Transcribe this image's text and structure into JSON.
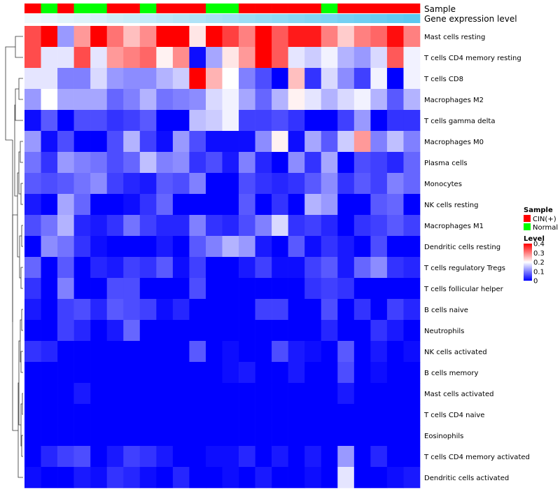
{
  "chart_data": {
    "type": "heatmap",
    "annotation_labels": [
      "Sample",
      "Gene expression level"
    ],
    "columns": 24,
    "sample_groups": [
      "CIN(+)",
      "Normal",
      "CIN(+)",
      "Normal",
      "Normal",
      "CIN(+)",
      "CIN(+)",
      "Normal",
      "CIN(+)",
      "CIN(+)",
      "CIN(+)",
      "Normal",
      "Normal",
      "CIN(+)",
      "CIN(+)",
      "CIN(+)",
      "CIN(+)",
      "CIN(+)",
      "Normal",
      "CIN(+)",
      "CIN(+)",
      "CIN(+)",
      "CIN(+)",
      "CIN(+)"
    ],
    "gene_expression_level": [
      0.0,
      0.04,
      0.09,
      0.13,
      0.17,
      0.22,
      0.26,
      0.3,
      0.35,
      0.39,
      0.43,
      0.48,
      0.52,
      0.57,
      0.61,
      0.65,
      0.7,
      0.74,
      0.78,
      0.83,
      0.87,
      0.91,
      0.96,
      1.0
    ],
    "rows": [
      "Mast cells resting",
      "T cells CD4 memory resting",
      "T cells CD8",
      "Macrophages M2",
      "T cells gamma delta",
      "Macrophages M0",
      "Plasma cells",
      "Monocytes",
      "NK cells resting",
      "Macrophages M1",
      "Dendritic cells resting",
      "T cells regulatory  Tregs",
      "T cells follicular helper",
      "B cells naive",
      "Neutrophils",
      "NK cells activated",
      "B cells memory",
      "Mast cells activated",
      "T cells CD4 naive",
      "Eosinophils",
      "T cells CD4 memory activated",
      "Dendritic cells activated"
    ],
    "values": [
      [
        0.34,
        0.4,
        0.12,
        0.28,
        0.4,
        0.31,
        0.25,
        0.29,
        0.4,
        0.4,
        0.22,
        0.4,
        0.35,
        0.3,
        0.4,
        0.33,
        0.38,
        0.38,
        0.3,
        0.24,
        0.3,
        0.32,
        0.39,
        0.3
      ],
      [
        0.34,
        0.18,
        0.18,
        0.34,
        0.18,
        0.28,
        0.3,
        0.32,
        0.21,
        0.29,
        0.01,
        0.13,
        0.22,
        0.28,
        0.4,
        0.33,
        0.18,
        0.16,
        0.19,
        0.14,
        0.12,
        0.17,
        0.33,
        0.19
      ],
      [
        0.18,
        0.18,
        0.1,
        0.1,
        0.17,
        0.12,
        0.11,
        0.11,
        0.14,
        0.16,
        0.4,
        0.26,
        0.2,
        0.1,
        0.06,
        0.0,
        0.25,
        0.04,
        0.17,
        0.11,
        0.05,
        0.19,
        0.0,
        0.19
      ],
      [
        0.12,
        0.2,
        0.13,
        0.13,
        0.13,
        0.08,
        0.1,
        0.14,
        0.09,
        0.1,
        0.11,
        0.17,
        0.19,
        0.13,
        0.08,
        0.14,
        0.21,
        0.18,
        0.14,
        0.17,
        0.19,
        0.14,
        0.07,
        0.14
      ],
      [
        0.01,
        0.07,
        0.0,
        0.06,
        0.06,
        0.04,
        0.05,
        0.07,
        0.0,
        0.0,
        0.15,
        0.16,
        0.19,
        0.05,
        0.05,
        0.06,
        0.04,
        0.0,
        0.0,
        0.05,
        0.12,
        0.0,
        0.04,
        0.04
      ],
      [
        0.12,
        0.01,
        0.06,
        0.0,
        0.0,
        0.06,
        0.14,
        0.05,
        0.01,
        0.12,
        0.06,
        0.01,
        0.01,
        0.01,
        0.11,
        0.21,
        0.01,
        0.13,
        0.07,
        0.16,
        0.28,
        0.1,
        0.15,
        0.1
      ],
      [
        0.09,
        0.04,
        0.12,
        0.1,
        0.09,
        0.06,
        0.08,
        0.15,
        0.1,
        0.11,
        0.04,
        0.06,
        0.02,
        0.1,
        0.03,
        0.0,
        0.11,
        0.04,
        0.13,
        0.0,
        0.06,
        0.05,
        0.03,
        0.08
      ],
      [
        0.07,
        0.06,
        0.07,
        0.09,
        0.11,
        0.05,
        0.03,
        0.02,
        0.07,
        0.06,
        0.1,
        0.0,
        0.0,
        0.06,
        0.04,
        0.03,
        0.04,
        0.07,
        0.11,
        0.04,
        0.07,
        0.05,
        0.1,
        0.08
      ],
      [
        0.02,
        0.0,
        0.13,
        0.08,
        0.0,
        0.0,
        0.01,
        0.04,
        0.08,
        0.0,
        0.0,
        0.0,
        0.0,
        0.07,
        0.0,
        0.04,
        0.0,
        0.14,
        0.12,
        0.0,
        0.0,
        0.07,
        0.08,
        0.0
      ],
      [
        0.06,
        0.09,
        0.14,
        0.03,
        0.02,
        0.04,
        0.09,
        0.05,
        0.03,
        0.03,
        0.1,
        0.04,
        0.03,
        0.06,
        0.1,
        0.17,
        0.04,
        0.05,
        0.03,
        0.0,
        0.04,
        0.05,
        0.07,
        0.05
      ],
      [
        0.0,
        0.11,
        0.09,
        0.04,
        0.01,
        0.0,
        0.0,
        0.0,
        0.02,
        0.0,
        0.07,
        0.1,
        0.14,
        0.12,
        0.02,
        0.0,
        0.07,
        0.01,
        0.04,
        0.02,
        0.0,
        0.06,
        0.0,
        0.0
      ],
      [
        0.08,
        0.0,
        0.07,
        0.0,
        0.03,
        0.02,
        0.05,
        0.04,
        0.07,
        0.01,
        0.05,
        0.0,
        0.0,
        0.02,
        0.05,
        0.01,
        0.01,
        0.05,
        0.07,
        0.02,
        0.08,
        0.11,
        0.04,
        0.03
      ],
      [
        0.04,
        0.0,
        0.1,
        0.0,
        0.0,
        0.06,
        0.06,
        0.0,
        0.0,
        0.0,
        0.06,
        0.0,
        0.0,
        0.0,
        0.0,
        0.0,
        0.0,
        0.04,
        0.05,
        0.04,
        0.0,
        0.0,
        0.0,
        0.0
      ],
      [
        0.02,
        0.0,
        0.05,
        0.06,
        0.03,
        0.07,
        0.06,
        0.05,
        0.01,
        0.03,
        0.0,
        0.0,
        0.0,
        0.0,
        0.05,
        0.05,
        0.0,
        0.0,
        0.06,
        0.0,
        0.04,
        0.0,
        0.05,
        0.03
      ],
      [
        0.0,
        0.0,
        0.05,
        0.03,
        0.0,
        0.02,
        0.08,
        0.0,
        0.0,
        0.0,
        0.0,
        0.0,
        0.0,
        0.0,
        0.0,
        0.0,
        0.0,
        0.0,
        0.03,
        0.0,
        0.0,
        0.04,
        0.02,
        0.0
      ],
      [
        0.04,
        0.03,
        0.0,
        0.0,
        0.0,
        0.0,
        0.0,
        0.0,
        0.0,
        0.0,
        0.07,
        0.0,
        0.01,
        0.0,
        0.0,
        0.06,
        0.02,
        0.01,
        0.0,
        0.07,
        0.0,
        0.02,
        0.0,
        0.01
      ],
      [
        0.0,
        0.0,
        0.0,
        0.0,
        0.0,
        0.0,
        0.0,
        0.0,
        0.0,
        0.0,
        0.0,
        0.0,
        0.01,
        0.02,
        0.0,
        0.0,
        0.02,
        0.0,
        0.0,
        0.06,
        0.0,
        0.01,
        0.0,
        0.0
      ],
      [
        0.0,
        0.0,
        0.0,
        0.02,
        0.0,
        0.0,
        0.0,
        0.0,
        0.0,
        0.0,
        0.0,
        0.0,
        0.0,
        0.0,
        0.0,
        0.0,
        0.0,
        0.0,
        0.0,
        0.02,
        0.0,
        0.0,
        0.0,
        0.0
      ],
      [
        0.0,
        0.0,
        0.0,
        0.0,
        0.0,
        0.0,
        0.0,
        0.0,
        0.0,
        0.0,
        0.0,
        0.0,
        0.0,
        0.0,
        0.0,
        0.0,
        0.0,
        0.0,
        0.0,
        0.0,
        0.0,
        0.0,
        0.0,
        0.0
      ],
      [
        0.0,
        0.0,
        0.0,
        0.0,
        0.0,
        0.0,
        0.0,
        0.0,
        0.0,
        0.0,
        0.0,
        0.0,
        0.0,
        0.0,
        0.0,
        0.0,
        0.0,
        0.0,
        0.0,
        0.0,
        0.0,
        0.0,
        0.0,
        0.0
      ],
      [
        0.0,
        0.03,
        0.05,
        0.06,
        0.0,
        0.02,
        0.05,
        0.04,
        0.02,
        0.0,
        0.0,
        0.01,
        0.01,
        0.03,
        0.0,
        0.02,
        0.0,
        0.02,
        0.0,
        0.12,
        0.0,
        0.03,
        0.0,
        0.0
      ],
      [
        0.01,
        0.0,
        0.0,
        0.02,
        0.01,
        0.04,
        0.03,
        0.01,
        0.0,
        0.03,
        0.0,
        0.0,
        0.01,
        0.0,
        0.02,
        0.0,
        0.0,
        0.01,
        0.0,
        0.18,
        0.0,
        0.0,
        0.01,
        0.02
      ]
    ],
    "color_scale": {
      "min": 0,
      "mid": 0.2,
      "max": 0.4,
      "low": "#0000ff",
      "mid_color": "#ffffff",
      "high": "#ff0000"
    },
    "legend": {
      "sample_title": "Sample",
      "sample_entries": [
        {
          "label": "CIN(+)",
          "color": "#ff0000"
        },
        {
          "label": "Normal",
          "color": "#00ff00"
        }
      ],
      "level_title": "Level",
      "level_ticks": [
        {
          "label": "0.4",
          "value": 0.4
        },
        {
          "label": "0.3",
          "value": 0.3
        },
        {
          "label": "0.2",
          "value": 0.2
        },
        {
          "label": "0.1",
          "value": 0.1
        },
        {
          "label": "0",
          "value": 0.0
        }
      ]
    },
    "expression_colors": {
      "low": "#f0f8fc",
      "high": "#5bc8f0"
    }
  }
}
